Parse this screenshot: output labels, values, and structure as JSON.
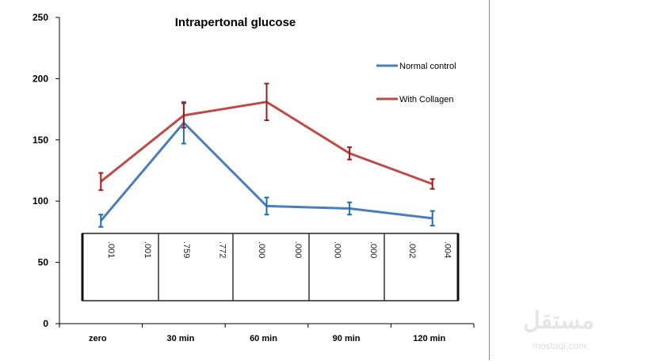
{
  "chart_data": {
    "type": "line",
    "title": "Intrapertonal  glucose",
    "categories": [
      "zero",
      "30 min",
      "60 min",
      "90 min",
      "120 min"
    ],
    "ylim": [
      0,
      250
    ],
    "yticks": [
      0,
      50,
      100,
      150,
      200,
      250
    ],
    "grid": false,
    "legend_position": "right",
    "series": [
      {
        "name": "Normal control",
        "color": "#4a7ebb",
        "error_color": "#1f6fa8",
        "values": [
          84,
          164,
          96,
          94,
          86
        ],
        "errors": [
          5,
          17,
          7,
          5,
          6
        ]
      },
      {
        "name": "With Collagen",
        "color": "#be4b48",
        "error_color": "#9b1c1c",
        "values": [
          116,
          170,
          181,
          139,
          114
        ],
        "errors": [
          7,
          10,
          15,
          5,
          4
        ]
      }
    ],
    "p_value_table": [
      [
        ".001",
        ".001"
      ],
      [
        ".759",
        ".772"
      ],
      [
        ".000",
        ".000"
      ],
      [
        ".000",
        ".000"
      ],
      [
        ".002",
        ".004"
      ]
    ]
  },
  "watermark": {
    "arabic": "مستقل",
    "latin": "mostaqi.com"
  }
}
